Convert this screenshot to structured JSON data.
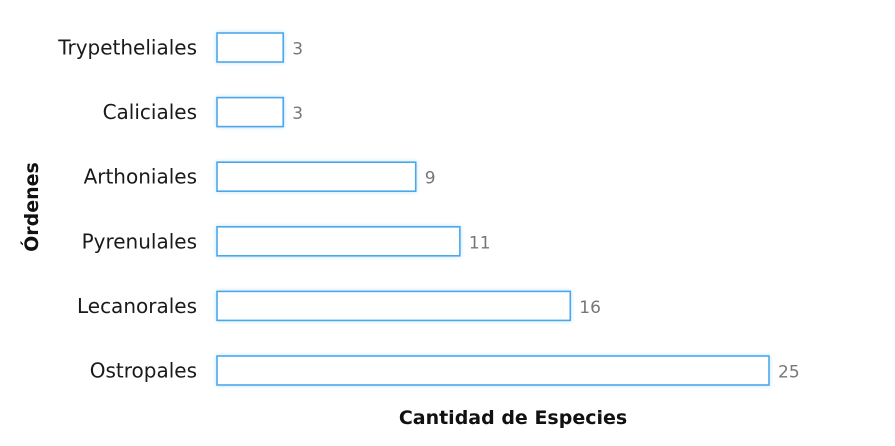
{
  "chart_data": {
    "type": "bar",
    "orientation": "horizontal",
    "categories": [
      "Trypetheliales",
      "Caliciales",
      "Arthoniales",
      "Pyrenulales",
      "Lecanorales",
      "Ostropales"
    ],
    "values": [
      3,
      3,
      9,
      11,
      16,
      25
    ],
    "xlabel": "Cantidad de Especies",
    "ylabel": "Órdenes",
    "xlim": [
      0,
      25
    ],
    "grid": false,
    "data_labels": true,
    "colors": {
      "bar_fill": "#ffffff",
      "bar_stroke": "#4aa8ea",
      "bar_glow": "#bfe3fb",
      "value_text": "#777777"
    }
  }
}
